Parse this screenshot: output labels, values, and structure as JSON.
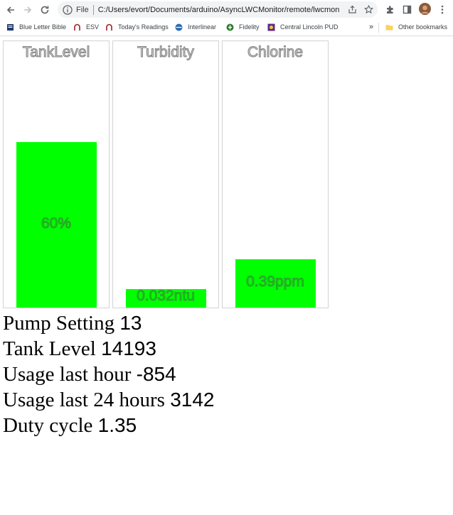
{
  "browser": {
    "file_chip": "File",
    "url": "C:/Users/evort/Documents/arduino/AsyncLWCMonitor/remote/lwcmon.h...",
    "bookmarks": [
      {
        "label": "Blue Letter Bible",
        "icon": "bible-icon"
      },
      {
        "label": "ESV",
        "icon": "esv-icon"
      },
      {
        "label": "Today's Readings",
        "icon": "readings-icon"
      },
      {
        "label": "Interlinear",
        "icon": "interlinear-icon"
      },
      {
        "label": "Fidelity",
        "icon": "fidelity-icon"
      },
      {
        "label": "Central Lincoln PUD",
        "icon": "pud-icon"
      }
    ],
    "more_bookmarks": "»",
    "other_bookmarks": "Other bookmarks"
  },
  "gauges": [
    {
      "title": "TankLevel",
      "value_label": "60%",
      "fill_fraction": 0.62
    },
    {
      "title": "Turbidity",
      "value_label": "0.032ntu",
      "fill_fraction": 0.07
    },
    {
      "title": "Chlorine",
      "value_label": "0.39ppm",
      "fill_fraction": 0.18
    }
  ],
  "stats": [
    {
      "label": "Pump Setting",
      "value": "13"
    },
    {
      "label": "Tank Level",
      "value": "14193"
    },
    {
      "label": "Usage last hour",
      "value": "-854"
    },
    {
      "label": "Usage last 24 hours",
      "value": "3142"
    },
    {
      "label": "Duty cycle",
      "value": "1.35"
    }
  ],
  "colors": {
    "bar_fill": "#00ff00",
    "gauge_border": "#d3d3d3"
  }
}
